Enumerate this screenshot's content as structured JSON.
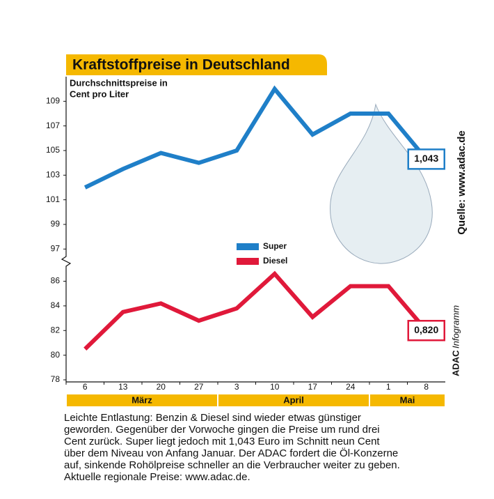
{
  "chart_data": {
    "type": "line",
    "title": "Kraftstoffpreise in Deutschland",
    "subtitle": [
      "Durchschnittspreise in",
      "Cent pro Liter"
    ],
    "categories": [
      "6",
      "13",
      "20",
      "27",
      "3",
      "10",
      "17",
      "24",
      "1",
      "8"
    ],
    "months": [
      "März",
      "April",
      "Mai"
    ],
    "ylim": [
      96,
      111
    ],
    "yticks": [
      97,
      99,
      101,
      103,
      105,
      107,
      109
    ],
    "y2lim": [
      78,
      87.5
    ],
    "y2ticks": [
      78,
      80,
      82,
      84,
      86
    ],
    "series": [
      {
        "name": "Super",
        "color": "#1f7fc8",
        "values": [
          102,
          103.5,
          104.8,
          104,
          105,
          110,
          106.3,
          108,
          108,
          104.3
        ],
        "value_labels": [
          null,
          null,
          null,
          null,
          null,
          null,
          null,
          null,
          null,
          "1,043"
        ]
      },
      {
        "name": "Diesel",
        "color": "#e0193a",
        "axis": "y2",
        "values": [
          80.5,
          83.5,
          84.2,
          82.8,
          83.8,
          86.6,
          83.1,
          85.6,
          85.6,
          82
        ],
        "value_labels": [
          null,
          null,
          null,
          null,
          null,
          null,
          null,
          null,
          null,
          "0,820"
        ]
      }
    ],
    "source": "Quelle: www.adac.de",
    "brand": "ADAC",
    "brand_suffix": "Infogramm",
    "text": [
      "Leichte Entlastung: Benzin & Diesel sind wieder etwas günstiger",
      "geworden. Gegenüber der Vorwoche gingen die Preise um rund drei",
      "Cent zurück. Super liegt jedoch mit 1,043 Euro im Schnitt neun Cent",
      "über dem Niveau von Anfang Januar. Der ADAC fordert die Öl-Konzerne",
      "auf, sinkende Rohölpreise schneller an die Verbraucher weiter zu geben.",
      "Aktuelle regionale Preise: www.adac.de."
    ]
  }
}
